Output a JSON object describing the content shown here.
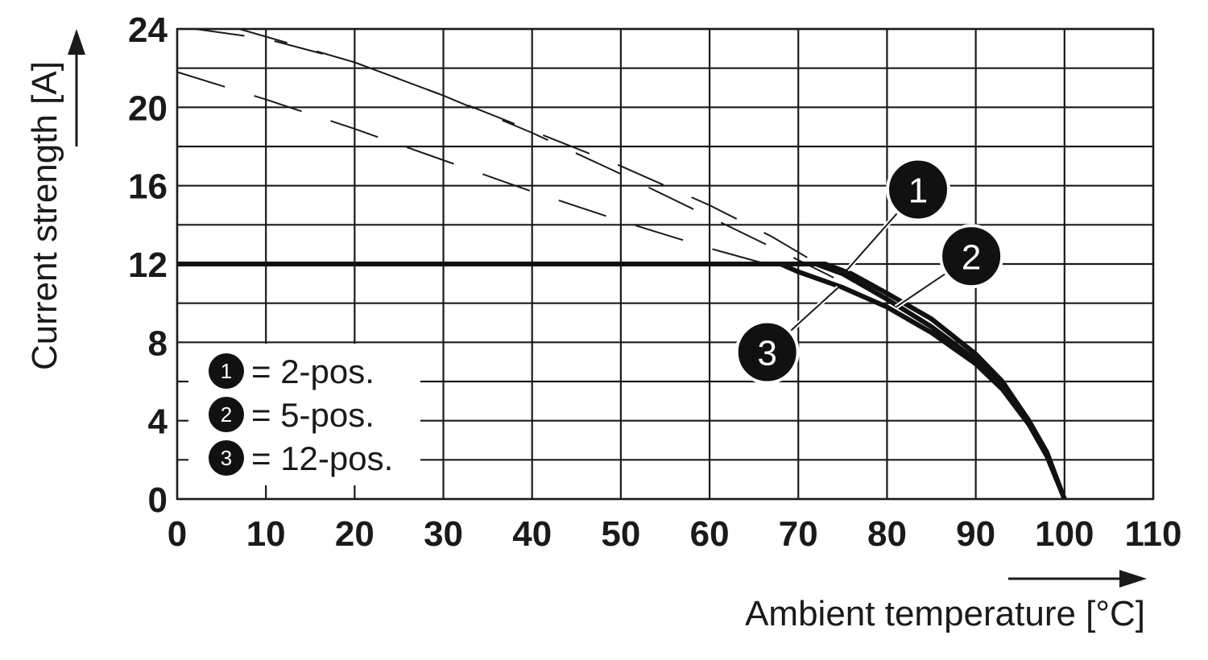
{
  "chart_data": {
    "type": "line",
    "xlabel": "Ambient temperature [°C]",
    "ylabel": "Current strength [A]",
    "xlim": [
      0,
      110
    ],
    "ylim": [
      0,
      24
    ],
    "x_ticks": [
      0,
      10,
      20,
      30,
      40,
      50,
      60,
      70,
      80,
      90,
      100,
      110
    ],
    "y_ticks": [
      0,
      4,
      8,
      12,
      16,
      20,
      24
    ],
    "grid": true,
    "legend_position": "bottom-left",
    "legend": [
      {
        "marker": "1",
        "label": "= 2-pos."
      },
      {
        "marker": "2",
        "label": "= 5-pos."
      },
      {
        "marker": "3",
        "label": "= 12-pos."
      }
    ],
    "series": [
      {
        "marker": "1",
        "style": "solid",
        "points": [
          [
            0,
            12
          ],
          [
            73,
            12
          ],
          [
            76,
            11.5
          ],
          [
            80,
            10.5
          ],
          [
            85,
            9.2
          ],
          [
            90,
            7.4
          ],
          [
            93,
            6.0
          ],
          [
            96,
            4.0
          ],
          [
            98,
            2.4
          ],
          [
            100,
            0
          ]
        ]
      },
      {
        "marker": "2",
        "style": "solid",
        "points": [
          [
            0,
            12
          ],
          [
            72,
            12
          ],
          [
            75,
            11.5
          ],
          [
            80,
            10.2
          ],
          [
            85,
            8.8
          ],
          [
            90,
            7.1
          ],
          [
            93,
            5.8
          ],
          [
            96,
            3.9
          ],
          [
            98,
            2.3
          ],
          [
            100,
            0
          ]
        ]
      },
      {
        "marker": "3",
        "style": "solid",
        "points": [
          [
            0,
            12
          ],
          [
            68,
            12
          ],
          [
            70,
            11.6
          ],
          [
            75,
            10.8
          ],
          [
            80,
            9.8
          ],
          [
            85,
            8.5
          ],
          [
            90,
            6.9
          ],
          [
            93,
            5.6
          ],
          [
            96,
            3.8
          ],
          [
            98,
            2.2
          ],
          [
            100,
            0
          ]
        ]
      },
      {
        "marker": "1",
        "style": "dashed",
        "points": [
          [
            2,
            24
          ],
          [
            10,
            23.5
          ],
          [
            20,
            22.3
          ],
          [
            30,
            20.6
          ],
          [
            40,
            18.7
          ],
          [
            50,
            16.6
          ],
          [
            60,
            14.4
          ],
          [
            70,
            12.2
          ],
          [
            74,
            11.3
          ]
        ]
      },
      {
        "marker": "2",
        "style": "dashed",
        "points": [
          [
            7,
            24
          ],
          [
            20,
            22.3
          ],
          [
            30,
            20.6
          ],
          [
            40,
            18.8
          ],
          [
            50,
            17.0
          ],
          [
            60,
            15.0
          ],
          [
            67,
            13.4
          ],
          [
            73,
            11.8
          ]
        ]
      },
      {
        "marker": "3",
        "style": "dashed",
        "points": [
          [
            0,
            21.8
          ],
          [
            10,
            20.4
          ],
          [
            20,
            18.9
          ],
          [
            30,
            17.3
          ],
          [
            40,
            15.7
          ],
          [
            50,
            14.2
          ],
          [
            60,
            12.8
          ],
          [
            68,
            11.8
          ]
        ]
      }
    ],
    "callouts": [
      {
        "marker": "1",
        "at": [
          75.5,
          11.7
        ],
        "label_at": [
          83.5,
          15.8
        ]
      },
      {
        "marker": "2",
        "at": [
          81,
          9.8
        ],
        "label_at": [
          89.5,
          12.4
        ]
      },
      {
        "marker": "3",
        "at": [
          74.5,
          10.8
        ],
        "label_at": [
          66.5,
          7.5
        ]
      }
    ]
  }
}
